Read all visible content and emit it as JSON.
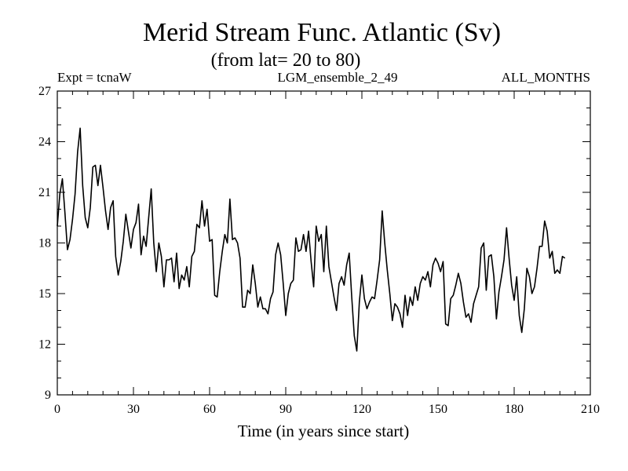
{
  "chart_data": {
    "type": "line",
    "title": "Merid Stream Func. Atlantic (Sv)",
    "subtitle": "(from lat= 20 to 80)",
    "header_left": "Expt = tcnaW",
    "header_center": "LGM_ensemble_2_49",
    "header_right": "ALL_MONTHS",
    "xlabel": "Time (in years since start)",
    "ylabel": "",
    "xlim": [
      0,
      210
    ],
    "ylim": [
      9,
      27
    ],
    "x_ticks": [
      0,
      30,
      60,
      90,
      120,
      150,
      180,
      210
    ],
    "y_ticks": [
      9,
      12,
      15,
      18,
      21,
      24,
      27
    ],
    "x_tick_labels": [
      "0",
      "30",
      "60",
      "90",
      "120",
      "150",
      "180",
      "210"
    ],
    "y_tick_labels": [
      "9",
      "12",
      "15",
      "18",
      "21",
      "24",
      "27"
    ],
    "grid": false,
    "series": [
      {
        "name": "Merid Stream Func. Atlantic",
        "color": "#000000",
        "x_start": 0,
        "x_step": 1,
        "values": [
          19.0,
          20.9,
          21.8,
          19.8,
          17.6,
          18.2,
          19.4,
          20.9,
          23.4,
          24.8,
          21.4,
          19.5,
          18.9,
          20.1,
          22.5,
          22.6,
          21.4,
          22.6,
          21.3,
          19.9,
          18.8,
          20.1,
          20.5,
          17.2,
          16.1,
          16.9,
          18.1,
          19.7,
          18.7,
          17.7,
          18.8,
          19.2,
          20.3,
          17.3,
          18.4,
          17.8,
          19.5,
          21.2,
          18.0,
          16.3,
          18.0,
          17.2,
          15.4,
          17.0,
          17.0,
          17.1,
          15.7,
          17.4,
          15.3,
          16.1,
          15.8,
          16.6,
          15.4,
          17.2,
          17.5,
          19.1,
          18.9,
          20.5,
          19.0,
          20.0,
          18.1,
          18.2,
          14.9,
          14.8,
          16.3,
          17.5,
          18.5,
          18.0,
          20.6,
          18.2,
          18.3,
          18.0,
          17.1,
          14.2,
          14.2,
          15.2,
          15.0,
          16.7,
          15.6,
          14.2,
          14.8,
          14.1,
          14.1,
          13.8,
          14.7,
          15.1,
          17.3,
          18.0,
          17.3,
          15.6,
          13.7,
          15.0,
          15.6,
          15.8,
          18.3,
          17.5,
          17.6,
          18.5,
          17.5,
          18.7,
          16.9,
          15.4,
          19.0,
          18.1,
          18.5,
          16.3,
          19.0,
          16.6,
          15.7,
          14.8,
          14.0,
          15.6,
          16.0,
          15.5,
          16.7,
          17.4,
          14.8,
          12.5,
          11.6,
          14.5,
          16.1,
          14.7,
          14.1,
          14.5,
          14.8,
          14.7,
          15.8,
          17.0,
          19.9,
          18.0,
          16.4,
          15.0,
          13.4,
          14.4,
          14.2,
          13.8,
          13.0,
          14.9,
          13.7,
          14.8,
          14.3,
          15.4,
          14.6,
          15.6,
          16.0,
          15.8,
          16.3,
          15.4,
          16.7,
          17.1,
          16.8,
          16.3,
          16.9,
          13.2,
          13.1,
          14.7,
          14.9,
          15.5,
          16.2,
          15.6,
          14.5,
          13.6,
          13.8,
          13.3,
          14.4,
          14.9,
          15.4,
          17.7,
          18.0,
          15.2,
          17.2,
          17.3,
          16.0,
          13.5,
          15.1,
          16.0,
          17.0,
          18.9,
          17.1,
          15.5,
          14.6,
          16.0,
          13.7,
          12.7,
          14.1,
          16.5,
          16.0,
          15.0,
          15.4,
          16.5,
          17.8,
          17.8,
          19.3,
          18.7,
          17.1,
          17.5,
          16.2,
          16.4,
          16.2,
          17.2,
          17.1
        ]
      }
    ]
  }
}
